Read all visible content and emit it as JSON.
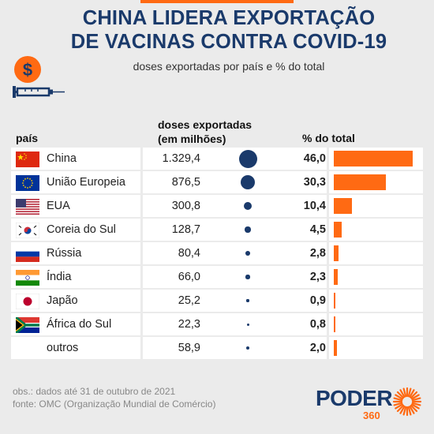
{
  "title_line1": "CHINA LIDERA EXPORTAÇÃO",
  "title_line2": "DE VACINAS CONTRA COVID-19",
  "subtitle": "doses exportadas por país e % do total",
  "columns": {
    "country": "país",
    "doses_line1": "doses exportadas",
    "doses_line2": "(em milhões)",
    "pct": "% do total"
  },
  "chart_data": {
    "type": "table",
    "columns": [
      "país",
      "doses exportadas (em milhões)",
      "% do total"
    ],
    "rows": [
      {
        "country": "China",
        "flag": "china-flag",
        "doses": "1.329,4",
        "doses_value": 1329.4,
        "pct": "46,0",
        "pct_value": 46.0
      },
      {
        "country": "União Europeia",
        "flag": "eu-flag",
        "doses": "876,5",
        "doses_value": 876.5,
        "pct": "30,3",
        "pct_value": 30.3
      },
      {
        "country": "EUA",
        "flag": "usa-flag",
        "doses": "300,8",
        "doses_value": 300.8,
        "pct": "10,4",
        "pct_value": 10.4
      },
      {
        "country": "Coreia do Sul",
        "flag": "south-korea-flag",
        "doses": "128,7",
        "doses_value": 128.7,
        "pct": "4,5",
        "pct_value": 4.5
      },
      {
        "country": "Rússia",
        "flag": "russia-flag",
        "doses": "80,4",
        "doses_value": 80.4,
        "pct": "2,8",
        "pct_value": 2.8
      },
      {
        "country": "Índia",
        "flag": "india-flag",
        "doses": "66,0",
        "doses_value": 66.0,
        "pct": "2,3",
        "pct_value": 2.3
      },
      {
        "country": "Japão",
        "flag": "japan-flag",
        "doses": "25,2",
        "doses_value": 25.2,
        "pct": "0,9",
        "pct_value": 0.9
      },
      {
        "country": "África do Sul",
        "flag": "south-africa-flag",
        "doses": "22,3",
        "doses_value": 22.3,
        "pct": "0,8",
        "pct_value": 0.8
      },
      {
        "country": "outros",
        "flag": "",
        "doses": "58,9",
        "doses_value": 58.9,
        "pct": "2,0",
        "pct_value": 2.0
      }
    ]
  },
  "note_line1": "obs.: dados até 31 de outubro de 2021",
  "note_line2": "fonte: OMC (Organização Mundial de Comércio)",
  "logo_text": "PODER",
  "logo_sub": "360",
  "colors": {
    "navy": "#1a3a6b",
    "orange": "#ff6a13",
    "background": "#ebebeb"
  }
}
